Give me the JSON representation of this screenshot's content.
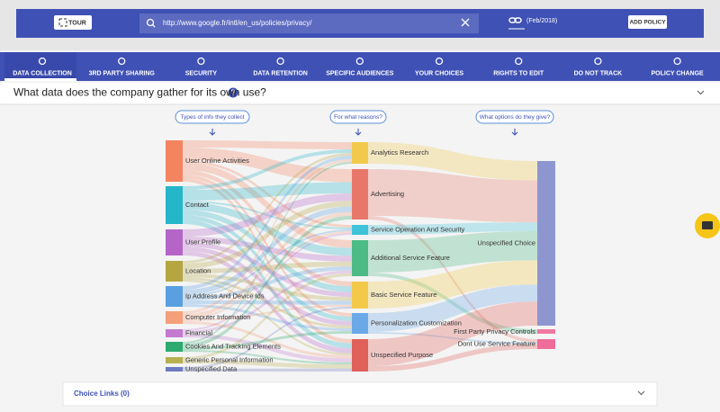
{
  "toolbar": {
    "tour": "TOUR",
    "url": "http://www.google.fr/intl/en_us/policies/privacy/",
    "date": "(Feb/2018)",
    "add_policy": "ADD POLICY"
  },
  "tabs": [
    "DATA COLLECTION",
    "3RD PARTY SHARING",
    "SECURITY",
    "DATA RETENTION",
    "SPECIFIC AUDIENCES",
    "YOUR CHOICES",
    "RIGHTS TO EDIT",
    "DO NOT TRACK",
    "POLICY CHANGE"
  ],
  "question": "What data does the company gather for its own use?",
  "columns": [
    "Types of info they collect",
    "For what reasons?",
    "What options do they give?"
  ],
  "sankey": {
    "sources": [
      "User Online Activities",
      "Contact",
      "User Profile",
      "Location",
      "Ip Address And Device Ids",
      "Computer Information",
      "Financial",
      "Cookies And Tracking Elements",
      "Generic Personal Information",
      "Unspecified Data"
    ],
    "purposes": [
      "Analytics Research",
      "Advertising",
      "Service Operation And Security",
      "Additional Service Feature",
      "Basic Service Feature",
      "Personalization Customization",
      "Unspecified Purpose"
    ],
    "choices": [
      "Unspecified Choice",
      "First Party Privacy Controls",
      "Dont Use Service Feature"
    ]
  },
  "choice_links": "Choice Links (0)"
}
